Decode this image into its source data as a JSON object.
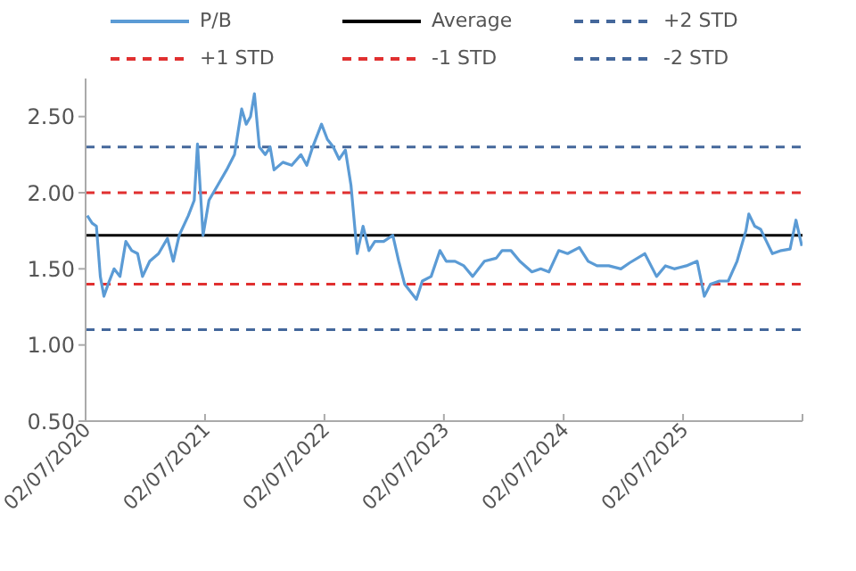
{
  "chart_data": {
    "type": "line",
    "legend": "top",
    "grid": false,
    "marker": "none",
    "line_style": "solid",
    "x": [
      "2020-07-07",
      "2020-07-22",
      "2020-08-04",
      "2020-08-16",
      "2020-08-27",
      "2020-09-09",
      "2020-09-27",
      "2020-10-15",
      "2020-11-02",
      "2020-11-20",
      "2020-12-08",
      "2020-12-23",
      "2021-01-14",
      "2021-02-10",
      "2021-03-09",
      "2021-03-27",
      "2021-04-14",
      "2021-05-12",
      "2021-05-30",
      "2021-06-09",
      "2021-06-26",
      "2021-07-14",
      "2021-08-10",
      "2021-09-06",
      "2021-09-30",
      "2021-10-22",
      "2021-11-05",
      "2021-11-18",
      "2021-11-30",
      "2021-12-15",
      "2022-01-02",
      "2022-01-17",
      "2022-01-29",
      "2022-02-25",
      "2022-03-24",
      "2022-04-21",
      "2022-05-09",
      "2022-05-27",
      "2022-06-23",
      "2022-07-11",
      "2022-07-29",
      "2022-08-16",
      "2022-09-04",
      "2022-09-21",
      "2022-10-10",
      "2022-10-28",
      "2022-11-15",
      "2022-12-03",
      "2022-12-30",
      "2023-01-27",
      "2023-02-14",
      "2023-03-04",
      "2023-03-22",
      "2023-04-09",
      "2023-04-27",
      "2023-05-24",
      "2023-06-20",
      "2023-07-09",
      "2023-08-05",
      "2023-09-01",
      "2023-09-28",
      "2023-11-03",
      "2023-12-09",
      "2023-12-27",
      "2024-01-23",
      "2024-02-19",
      "2024-03-27",
      "2024-04-23",
      "2024-05-18",
      "2024-06-17",
      "2024-07-14",
      "2024-08-19",
      "2024-09-15",
      "2024-10-12",
      "2024-11-17",
      "2024-12-24",
      "2025-01-20",
      "2025-03-07",
      "2025-04-12",
      "2025-05-09",
      "2025-06-05",
      "2025-07-12",
      "2025-08-14",
      "2025-09-05",
      "2025-09-24",
      "2025-10-21",
      "2025-11-17",
      "2025-12-14",
      "2026-01-10",
      "2026-01-19",
      "2026-02-06",
      "2026-02-24",
      "2026-03-14",
      "2026-04-01",
      "2026-04-28",
      "2026-05-25",
      "2026-06-12",
      "2026-06-30"
    ],
    "series": [
      {
        "name": "P/B",
        "color": "#5b9bd5",
        "values": [
          1.85,
          1.8,
          1.78,
          1.45,
          1.32,
          1.4,
          1.5,
          1.45,
          1.68,
          1.62,
          1.6,
          1.45,
          1.55,
          1.6,
          1.7,
          1.55,
          1.72,
          1.85,
          1.95,
          2.32,
          1.72,
          1.95,
          2.05,
          2.15,
          2.25,
          2.55,
          2.45,
          2.5,
          2.65,
          2.3,
          2.25,
          2.3,
          2.15,
          2.2,
          2.18,
          2.25,
          2.18,
          2.3,
          2.45,
          2.35,
          2.3,
          2.22,
          2.28,
          2.05,
          1.6,
          1.78,
          1.62,
          1.68,
          1.68,
          1.72,
          1.55,
          1.4,
          1.35,
          1.3,
          1.42,
          1.45,
          1.62,
          1.55,
          1.55,
          1.52,
          1.45,
          1.55,
          1.57,
          1.62,
          1.62,
          1.55,
          1.48,
          1.5,
          1.48,
          1.62,
          1.6,
          1.64,
          1.55,
          1.52,
          1.52,
          1.5,
          1.54,
          1.6,
          1.45,
          1.52,
          1.5,
          1.52,
          1.55,
          1.32,
          1.4,
          1.42,
          1.42,
          1.55,
          1.75,
          1.86,
          1.78,
          1.76,
          1.68,
          1.6,
          1.62,
          1.63,
          1.82,
          1.65
        ]
      }
    ],
    "ref_lines": [
      {
        "axis": "y",
        "value": 1.72,
        "label": "Average",
        "color": "#000000",
        "line_style": "solid"
      },
      {
        "axis": "y",
        "value": 2.3,
        "label": "+2 STD",
        "color": "#44679b",
        "line_style": "dashed"
      },
      {
        "axis": "y",
        "value": 2.0,
        "label": "+1 STD",
        "color": "#e03030",
        "line_style": "dashed"
      },
      {
        "axis": "y",
        "value": 1.4,
        "label": "-1 STD",
        "color": "#e03030",
        "line_style": "dashed"
      },
      {
        "axis": "y",
        "value": 1.1,
        "label": "-2 STD",
        "color": "#44679b",
        "line_style": "dashed"
      }
    ],
    "xlim": [
      "2020-07-02",
      "2026-07-02"
    ],
    "xticks": [
      {
        "value": "2020-07-02",
        "label": "02/07/2020"
      },
      {
        "value": "2021-07-02",
        "label": "02/07/2021"
      },
      {
        "value": "2022-07-02",
        "label": "02/07/2022"
      },
      {
        "value": "2023-07-02",
        "label": "02/07/2023"
      },
      {
        "value": "2024-07-02",
        "label": "02/07/2024"
      },
      {
        "value": "2025-07-02",
        "label": "02/07/2025"
      },
      {
        "value": "2026-07-02",
        "label": null
      }
    ],
    "ylim": [
      0.5,
      2.75
    ],
    "yticks": [
      {
        "value": 0.5,
        "label": "0.50"
      },
      {
        "value": 1,
        "label": "1.00"
      },
      {
        "value": 1.5,
        "label": "1.50"
      },
      {
        "value": 2,
        "label": "2.00"
      },
      {
        "value": 2.5,
        "label": "2.50"
      }
    ]
  }
}
